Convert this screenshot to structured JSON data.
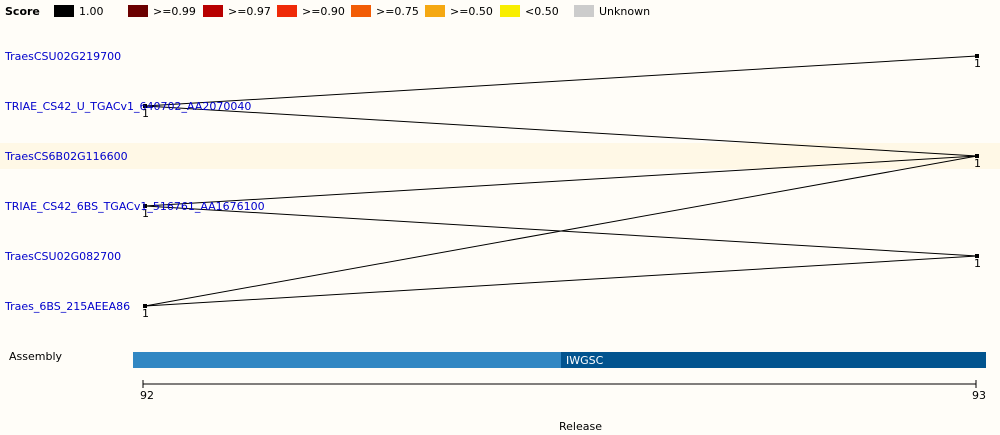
{
  "legend": {
    "title": "Score",
    "items": [
      {
        "label": "1.00",
        "color": "#000000"
      },
      {
        "label": ">=0.99",
        "color": "#6b0000"
      },
      {
        "label": ">=0.97",
        "color": "#b80000"
      },
      {
        "label": ">=0.90",
        "color": "#ef2a08"
      },
      {
        "label": ">=0.75",
        "color": "#f25c05"
      },
      {
        "label": ">=0.50",
        "color": "#f5a812"
      },
      {
        "label": "<0.50",
        "color": "#f8ee00"
      },
      {
        "label": "Unknown",
        "color": "#cccccc"
      }
    ]
  },
  "genes": [
    {
      "id": "TraesCSU02G219700"
    },
    {
      "id": "TRIAE_CS42_U_TGACv1_640702_AA2070040"
    },
    {
      "id": "TraesCS6B02G116600"
    },
    {
      "id": "TRIAE_CS42_6BS_TGACv1_516761_AA1676100"
    },
    {
      "id": "TraesCSU02G082700"
    },
    {
      "id": "Traes_6BS_215AEEA86"
    }
  ],
  "highlighted_gene": "TraesCS6B02G116600",
  "connections": [
    {
      "from_gene": "TRIAE_CS42_U_TGACv1_640702_AA2070040",
      "to_gene": "TraesCSU02G219700",
      "score": "1.00"
    },
    {
      "from_gene": "TRIAE_CS42_U_TGACv1_640702_AA2070040",
      "to_gene": "TraesCS6B02G116600",
      "score": "1.00"
    },
    {
      "from_gene": "TRIAE_CS42_6BS_TGACv1_516761_AA1676100",
      "to_gene": "TraesCS6B02G116600",
      "score": "1.00"
    },
    {
      "from_gene": "TRIAE_CS42_6BS_TGACv1_516761_AA1676100",
      "to_gene": "TraesCSU02G082700",
      "score": "1.00"
    },
    {
      "from_gene": "Traes_6BS_215AEEA86",
      "to_gene": "TraesCS6B02G116600",
      "score": "1.00"
    },
    {
      "from_gene": "Traes_6BS_215AEEA86",
      "to_gene": "TraesCSU02G082700",
      "score": "1.00"
    }
  ],
  "node_count_labels": {
    "left": [
      "1",
      "1",
      "1"
    ],
    "right": [
      "1",
      "1",
      "1"
    ]
  },
  "assembly": {
    "label": "Assembly",
    "bars": [
      {
        "release": "92",
        "label": "",
        "color": "#3187c3"
      },
      {
        "release": "93",
        "label": "IWGSC",
        "color": "#02548f"
      }
    ]
  },
  "axis": {
    "ticks": [
      "92",
      "93"
    ],
    "label": "Release"
  }
}
